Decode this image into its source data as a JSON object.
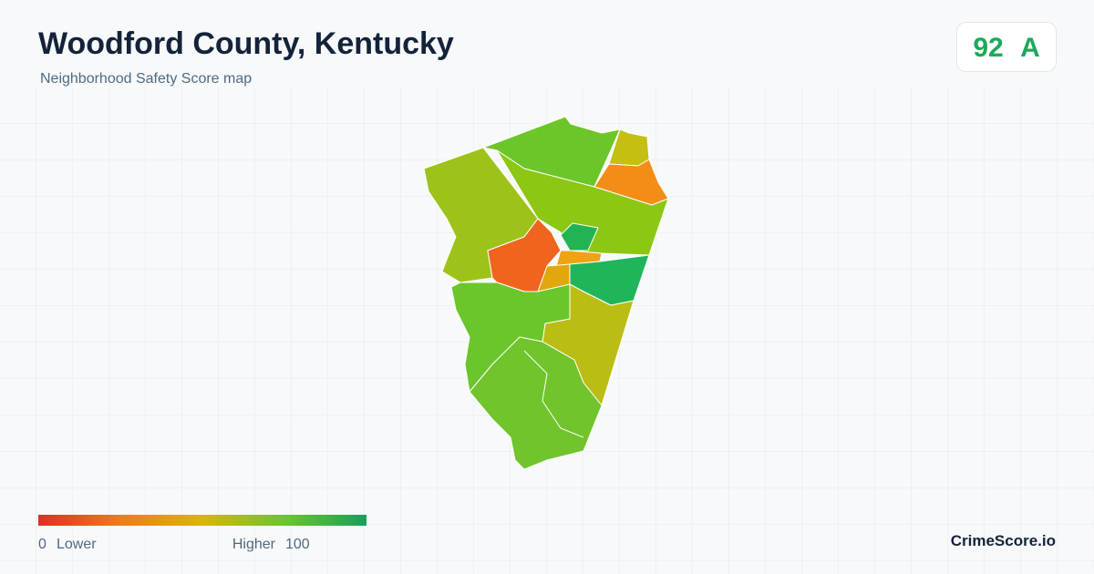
{
  "header": {
    "title": "Woodford County, Kentucky",
    "subtitle": "Neighborhood Safety Score map"
  },
  "score": {
    "value": 92,
    "grade": "A"
  },
  "legend": {
    "min": 0,
    "min_label": "Lower",
    "max_label": "Higher",
    "max": 100
  },
  "brand": "CrimeScore.io"
}
